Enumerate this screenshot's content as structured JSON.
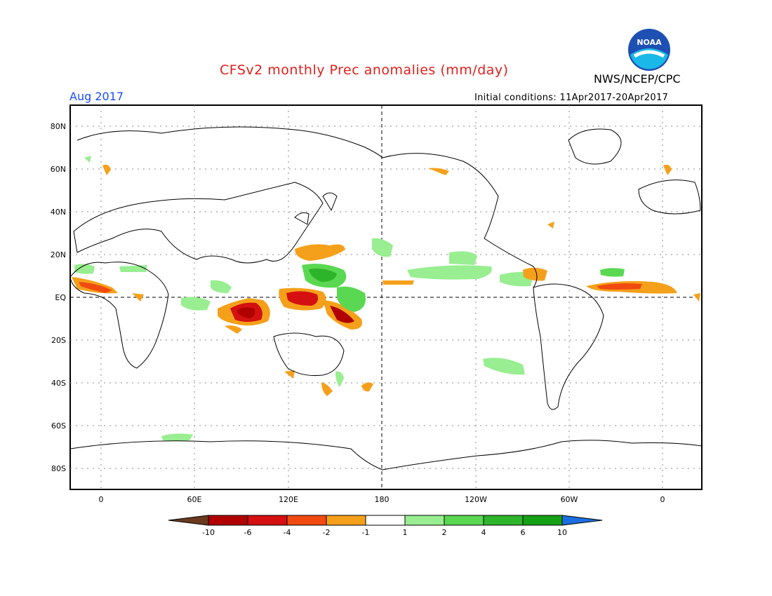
{
  "header": {
    "title": "CFSv2 monthly Prec anomalies (mm/day)",
    "agency": "NWS/NCEP/CPC",
    "month": "Aug 2017",
    "initial_conditions": "Initial conditions: 11Apr2017-20Apr2017",
    "logo_text": "NOAA"
  },
  "map": {
    "lat_labels": [
      "80N",
      "60N",
      "40N",
      "20N",
      "EQ",
      "20S",
      "40S",
      "60S",
      "80S"
    ],
    "lon_labels": [
      "0",
      "60E",
      "120E",
      "180",
      "120W",
      "60W",
      "0"
    ]
  },
  "colorbar": {
    "labels": [
      "-10",
      "-6",
      "-4",
      "-2",
      "-1",
      "1",
      "2",
      "4",
      "6",
      "10"
    ],
    "colors": [
      "#6b3a1e",
      "#b00000",
      "#d41010",
      "#f04a10",
      "#f5a01a",
      "#ffffff",
      "#98ee90",
      "#5ad852",
      "#2eb42a",
      "#15a015",
      "#1c6fe0"
    ]
  }
}
